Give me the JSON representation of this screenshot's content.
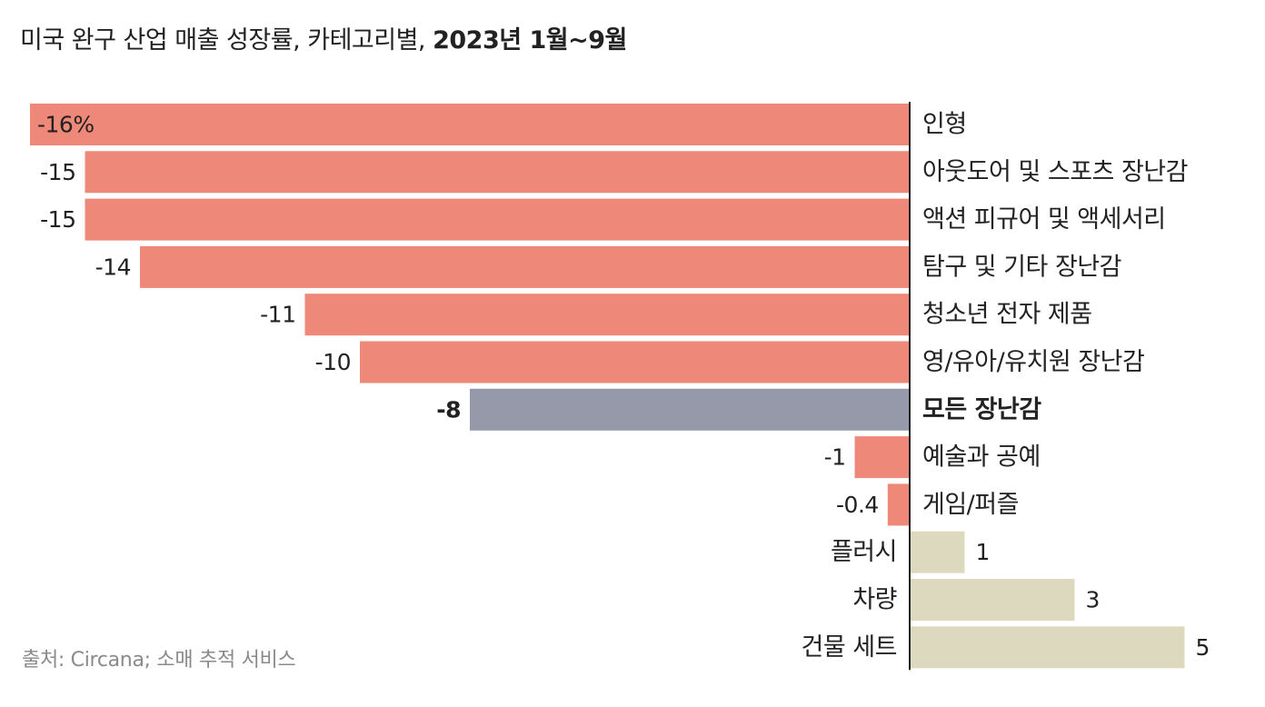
{
  "title": {
    "main": "미국 완구 산업 매출 성장률, 카테고리별, ",
    "period": "2023년 1월~9월"
  },
  "source": "출처: Circana; 소매 추적 서비스",
  "colors": {
    "negative": "#ee8878",
    "positive": "#ddd9bf",
    "total": "#9599aa",
    "axis": "#222222",
    "text": "#222222"
  },
  "chart_data": {
    "type": "bar",
    "orientation": "horizontal",
    "first_value_suffix": "%",
    "grid": false,
    "categories": [
      "인형",
      "아웃도어 및 스포츠 장난감",
      "액션 피규어 및 액세서리",
      "탐구 및 기타 장난감",
      "청소년 전자 제품",
      "영/유아/유치원 장난감",
      "모든 장난감",
      "예술과 공예",
      "게임/퍼즐",
      "플러시",
      "차량",
      "건물 세트"
    ],
    "values": [
      -16,
      -15,
      -15,
      -14,
      -11,
      -10,
      -8,
      -1,
      -0.4,
      1,
      3,
      5
    ],
    "highlight": "모든 장난감"
  }
}
